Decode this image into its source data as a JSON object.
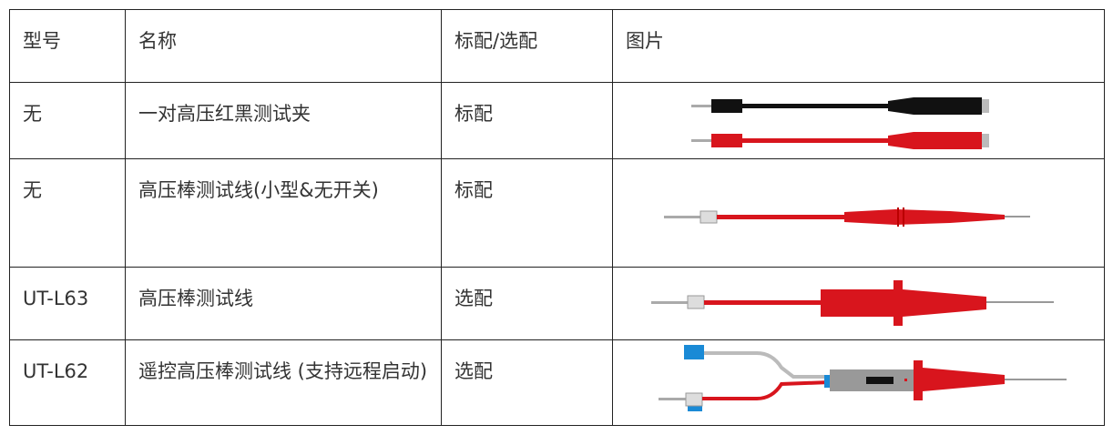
{
  "table": {
    "header": [
      "型号",
      "名称",
      "标配/选配",
      "图片"
    ],
    "rows": [
      [
        "无",
        "一对高压红黑测试夹",
        "标配"
      ],
      [
        "无",
        "高压棒测试线(小型&无开关)",
        "标配"
      ],
      [
        "UT-L63",
        "高压棒测试线",
        "选配"
      ],
      [
        "UT-L62",
        "遥控高压棒测试线 (支持远程启动)",
        "选配"
      ]
    ]
  }
}
